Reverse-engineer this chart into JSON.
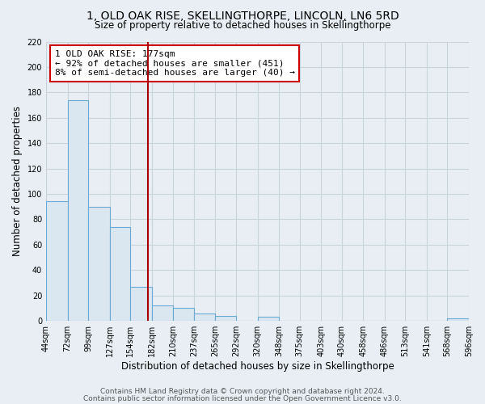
{
  "title": "1, OLD OAK RISE, SKELLINGTHORPE, LINCOLN, LN6 5RD",
  "subtitle": "Size of property relative to detached houses in Skellingthorpe",
  "xlabel": "Distribution of detached houses by size in Skellingthorpe",
  "ylabel": "Number of detached properties",
  "bar_color": "#dae6f0",
  "bar_edge_color": "#6aaad4",
  "bins": [
    44,
    72,
    99,
    127,
    154,
    182,
    210,
    237,
    265,
    292,
    320,
    348,
    375,
    403,
    430,
    458,
    486,
    513,
    541,
    568,
    596
  ],
  "counts": [
    94,
    174,
    90,
    74,
    27,
    12,
    10,
    6,
    4,
    0,
    3,
    0,
    0,
    0,
    0,
    0,
    0,
    0,
    0,
    2
  ],
  "vline_x": 177,
  "vline_color": "#aa0000",
  "annotation_text": "1 OLD OAK RISE: 177sqm\n← 92% of detached houses are smaller (451)\n8% of semi-detached houses are larger (40) →",
  "annotation_box_color": "white",
  "annotation_box_edge_color": "#cc0000",
  "ylim": [
    0,
    220
  ],
  "yticks": [
    0,
    20,
    40,
    60,
    80,
    100,
    120,
    140,
    160,
    180,
    200,
    220
  ],
  "tick_labels": [
    "44sqm",
    "72sqm",
    "99sqm",
    "127sqm",
    "154sqm",
    "182sqm",
    "210sqm",
    "237sqm",
    "265sqm",
    "292sqm",
    "320sqm",
    "348sqm",
    "375sqm",
    "403sqm",
    "430sqm",
    "458sqm",
    "486sqm",
    "513sqm",
    "541sqm",
    "568sqm",
    "596sqm"
  ],
  "footer1": "Contains HM Land Registry data © Crown copyright and database right 2024.",
  "footer2": "Contains public sector information licensed under the Open Government Licence v3.0.",
  "background_color": "#e8eef4",
  "plot_bg_color": "#e8eef4",
  "grid_color": "#c8d4dc",
  "title_fontsize": 10,
  "subtitle_fontsize": 8.5,
  "axis_label_fontsize": 8.5,
  "tick_fontsize": 7,
  "footer_fontsize": 6.5,
  "annotation_fontsize": 8
}
